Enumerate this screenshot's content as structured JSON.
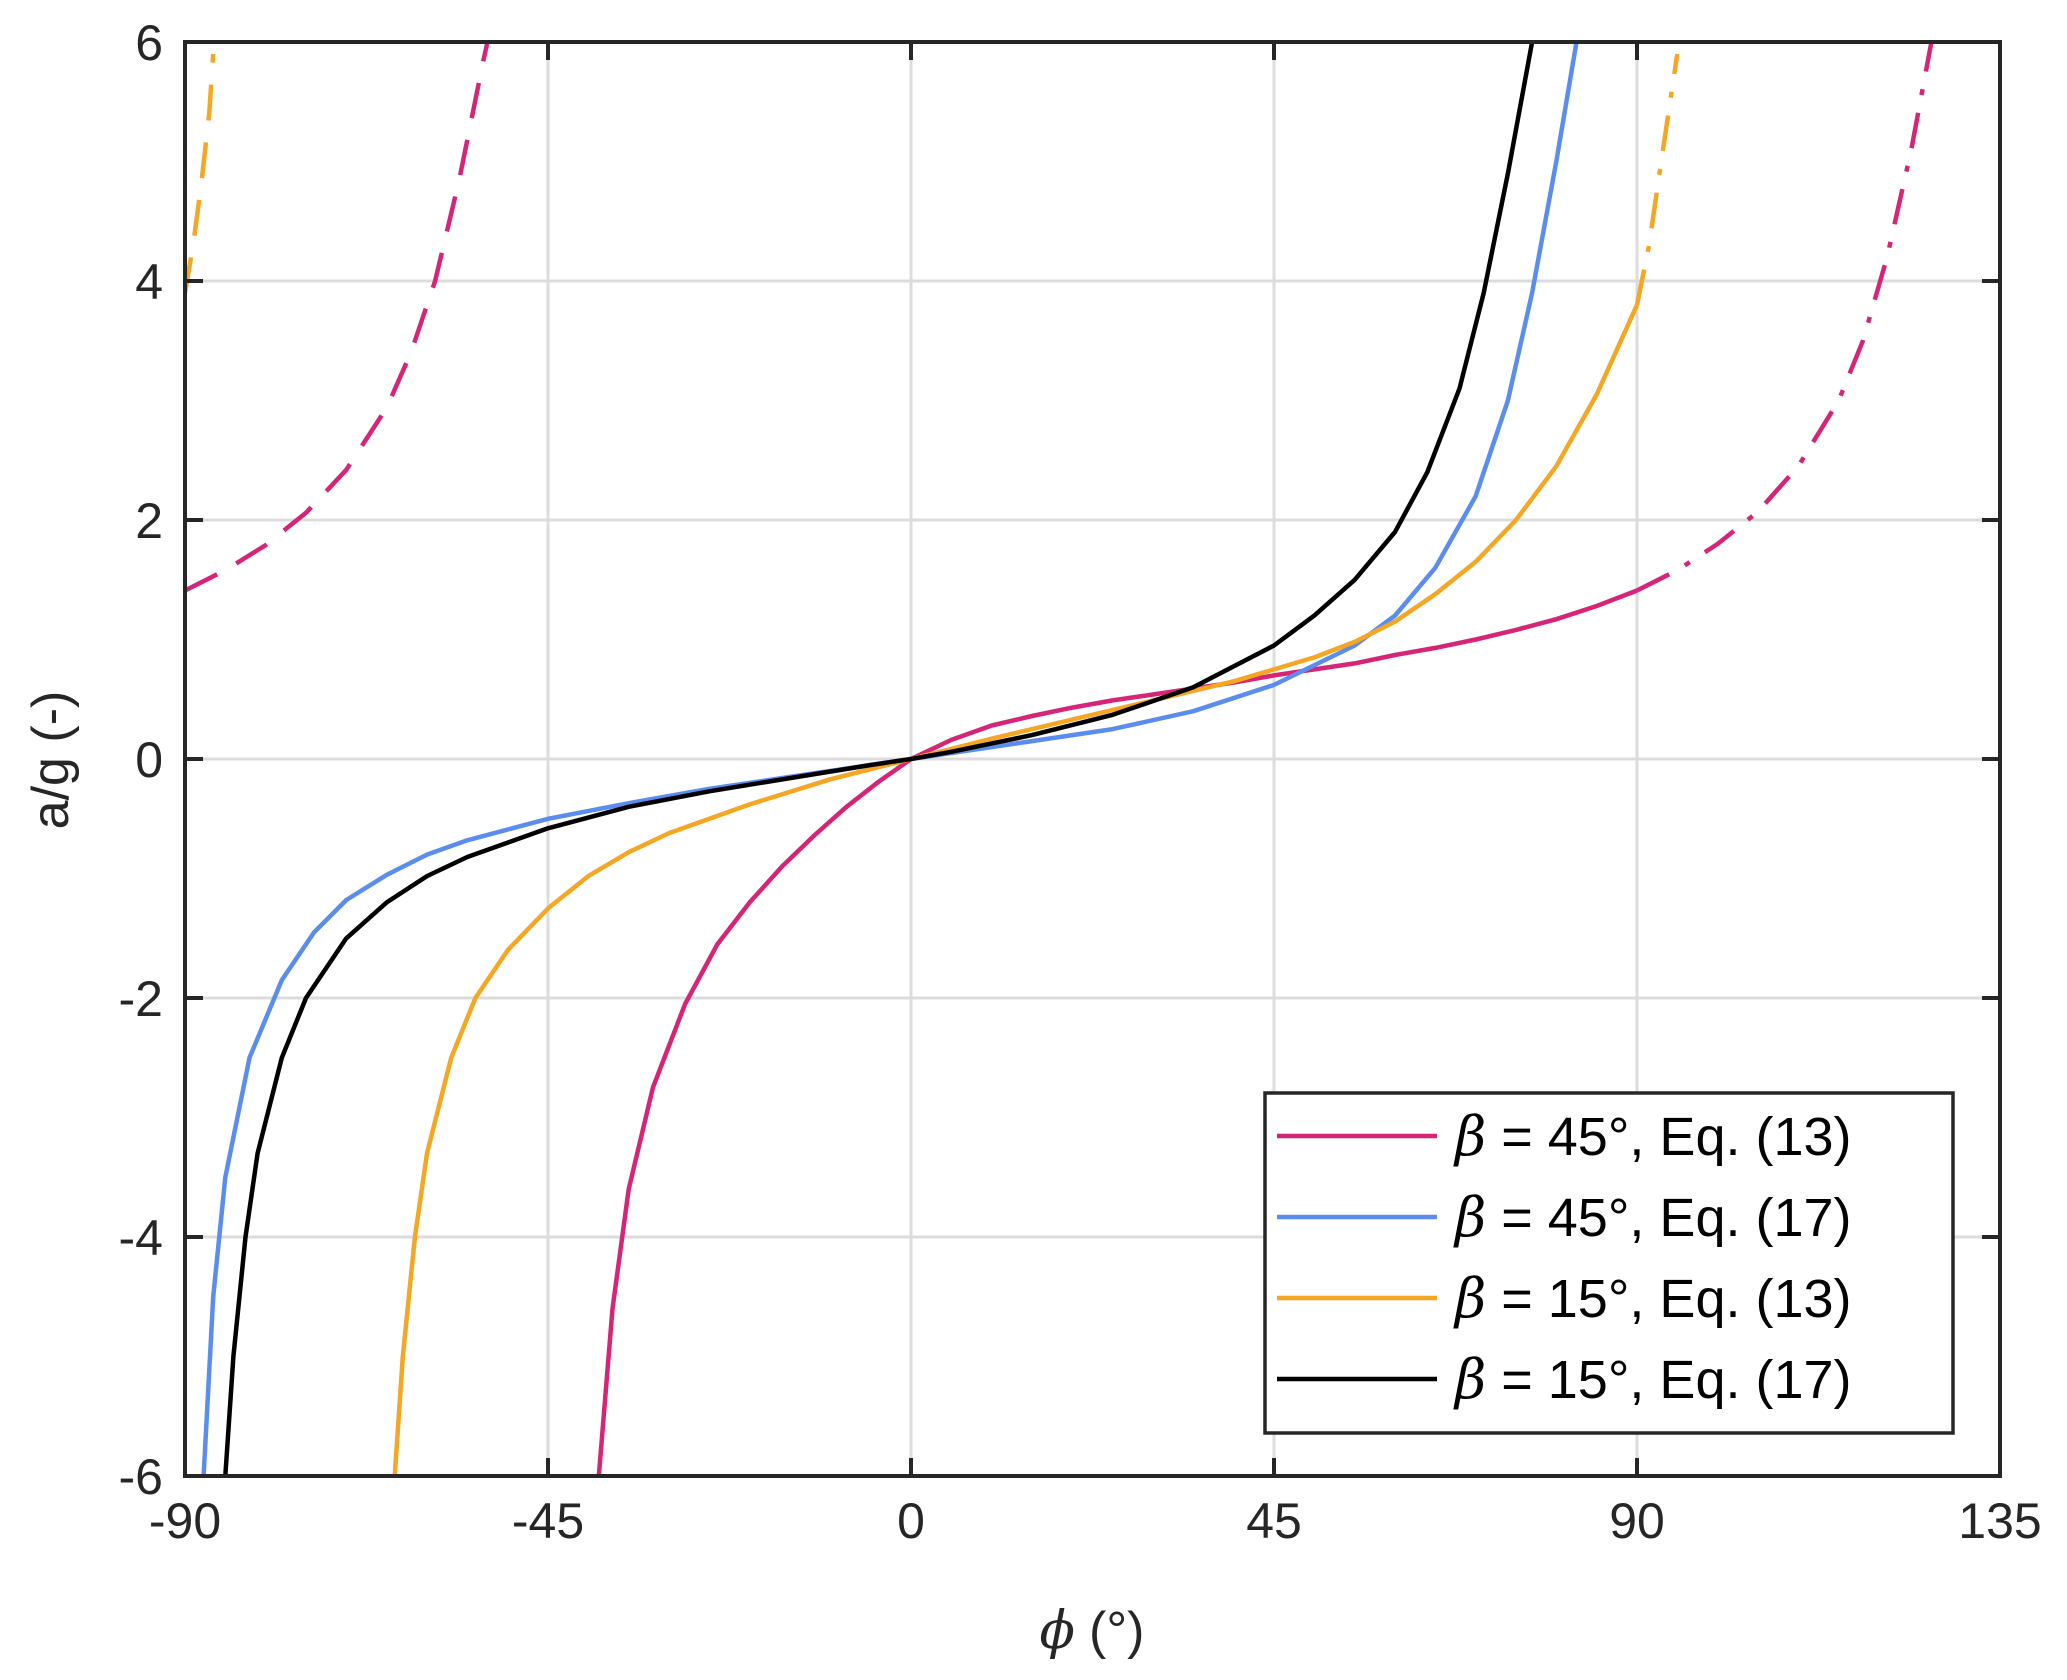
{
  "chart_data": {
    "type": "line",
    "xlabel_symbol": "ϕ",
    "xlabel_unit": "(°)",
    "ylabel": "a/g (-)",
    "xlim": [
      -90,
      135
    ],
    "ylim": [
      -6,
      6
    ],
    "xticks": [
      -90,
      -45,
      0,
      45,
      90,
      135
    ],
    "yticks": [
      -6,
      -4,
      -2,
      0,
      2,
      4,
      6
    ],
    "x_tick_labels": [
      "-90",
      "-45",
      "0",
      "45",
      "90",
      "135"
    ],
    "y_tick_labels": [
      "-6",
      "-4",
      "-2",
      "0",
      "2",
      "4",
      "6"
    ],
    "grid": true,
    "legend_position": "bottom-right",
    "series": [
      {
        "name": "β = 45°, Eq. (13)",
        "legend_symbol": "β",
        "legend_rest": " = 45°, Eq. (13)",
        "color": "#D62577",
        "solid": [
          [
            -38.7,
            -6
          ],
          [
            -37,
            -4.6
          ],
          [
            -35,
            -3.6
          ],
          [
            -32,
            -2.75
          ],
          [
            -28,
            -2.05
          ],
          [
            -24,
            -1.55
          ],
          [
            -20,
            -1.2
          ],
          [
            -16,
            -0.9
          ],
          [
            -12,
            -0.64
          ],
          [
            -8,
            -0.4
          ],
          [
            -4,
            -0.19
          ],
          [
            0,
            0
          ],
          [
            5,
            0.16
          ],
          [
            10,
            0.28
          ],
          [
            15,
            0.36
          ],
          [
            20,
            0.43
          ],
          [
            25,
            0.49
          ],
          [
            30,
            0.54
          ],
          [
            35,
            0.59
          ],
          [
            40,
            0.64
          ],
          [
            45,
            0.7
          ],
          [
            50,
            0.75
          ],
          [
            55,
            0.8
          ],
          [
            60,
            0.87
          ],
          [
            65,
            0.93
          ],
          [
            70,
            1.0
          ],
          [
            75,
            1.08
          ],
          [
            80,
            1.17
          ],
          [
            85,
            1.28
          ],
          [
            90,
            1.41
          ]
        ],
        "dashed": [
          [
            -90,
            1.41
          ],
          [
            -85,
            1.58
          ],
          [
            -80,
            1.79
          ],
          [
            -75,
            2.06
          ],
          [
            -70,
            2.42
          ],
          [
            -65,
            2.94
          ],
          [
            -62,
            3.4
          ],
          [
            -59,
            4.0
          ],
          [
            -56,
            4.85
          ],
          [
            -53,
            5.85
          ],
          [
            -52.5,
            6
          ]
        ],
        "dashdot": [
          [
            90,
            1.41
          ],
          [
            95,
            1.58
          ],
          [
            100,
            1.8
          ],
          [
            105,
            2.07
          ],
          [
            110,
            2.45
          ],
          [
            115,
            3.0
          ],
          [
            118,
            3.5
          ],
          [
            121,
            4.2
          ],
          [
            124,
            5.1
          ],
          [
            126.5,
            6
          ]
        ]
      },
      {
        "name": "β = 45°, Eq. (17)",
        "legend_symbol": "β",
        "legend_rest": " = 45°, Eq. (17)",
        "color": "#5B8DEF",
        "solid": [
          [
            -87.7,
            -6
          ],
          [
            -86.5,
            -4.5
          ],
          [
            -85,
            -3.5
          ],
          [
            -82,
            -2.5
          ],
          [
            -78,
            -1.85
          ],
          [
            -74,
            -1.45
          ],
          [
            -70,
            -1.18
          ],
          [
            -65,
            -0.97
          ],
          [
            -60,
            -0.8
          ],
          [
            -55,
            -0.68
          ],
          [
            -45,
            -0.5
          ],
          [
            -35,
            -0.37
          ],
          [
            -25,
            -0.25
          ],
          [
            -15,
            -0.15
          ],
          [
            -5,
            -0.05
          ],
          [
            0,
            0
          ],
          [
            5,
            0.05
          ],
          [
            15,
            0.15
          ],
          [
            25,
            0.25
          ],
          [
            35,
            0.4
          ],
          [
            45,
            0.62
          ],
          [
            55,
            0.95
          ],
          [
            60,
            1.2
          ],
          [
            65,
            1.6
          ],
          [
            70,
            2.2
          ],
          [
            74,
            3.0
          ],
          [
            77,
            3.9
          ],
          [
            80,
            5.0
          ],
          [
            82.5,
            6
          ]
        ]
      },
      {
        "name": "β = 15°, Eq. (13)",
        "legend_symbol": "β",
        "legend_rest": " = 15°, Eq. (13)",
        "color": "#F5A623",
        "solid": [
          [
            -64,
            -6
          ],
          [
            -63,
            -5.0
          ],
          [
            -61.5,
            -4.0
          ],
          [
            -60,
            -3.3
          ],
          [
            -57,
            -2.5
          ],
          [
            -54,
            -2.0
          ],
          [
            -50,
            -1.6
          ],
          [
            -45,
            -1.25
          ],
          [
            -40,
            -0.98
          ],
          [
            -35,
            -0.78
          ],
          [
            -30,
            -0.62
          ],
          [
            -20,
            -0.38
          ],
          [
            -10,
            -0.17
          ],
          [
            0,
            0
          ],
          [
            10,
            0.17
          ],
          [
            20,
            0.33
          ],
          [
            30,
            0.49
          ],
          [
            40,
            0.65
          ],
          [
            50,
            0.85
          ],
          [
            55,
            0.98
          ],
          [
            60,
            1.15
          ],
          [
            65,
            1.38
          ],
          [
            70,
            1.65
          ],
          [
            75,
            2.0
          ],
          [
            80,
            2.45
          ],
          [
            85,
            3.05
          ],
          [
            90,
            3.8
          ]
        ],
        "dashed": [
          [
            -90,
            3.9
          ],
          [
            -89,
            4.3
          ],
          [
            -88,
            4.8
          ],
          [
            -87,
            5.4
          ],
          [
            -86.5,
            5.9
          ]
        ],
        "dashdot": [
          [
            90,
            3.8
          ],
          [
            91.5,
            4.3
          ],
          [
            93,
            5.0
          ],
          [
            95,
            5.9
          ]
        ]
      },
      {
        "name": "β = 15°, Eq. (17)",
        "legend_symbol": "β",
        "legend_rest": " = 15°, Eq. (17)",
        "color": "#000000",
        "solid": [
          [
            -85,
            -6
          ],
          [
            -84,
            -5.0
          ],
          [
            -82.5,
            -4.0
          ],
          [
            -81,
            -3.3
          ],
          [
            -78,
            -2.5
          ],
          [
            -75,
            -2.0
          ],
          [
            -70,
            -1.5
          ],
          [
            -65,
            -1.2
          ],
          [
            -60,
            -0.98
          ],
          [
            -55,
            -0.82
          ],
          [
            -50,
            -0.7
          ],
          [
            -45,
            -0.58
          ],
          [
            -35,
            -0.4
          ],
          [
            -25,
            -0.27
          ],
          [
            -15,
            -0.16
          ],
          [
            -5,
            -0.05
          ],
          [
            0,
            0
          ],
          [
            5,
            0.06
          ],
          [
            15,
            0.2
          ],
          [
            25,
            0.37
          ],
          [
            35,
            0.6
          ],
          [
            45,
            0.95
          ],
          [
            50,
            1.2
          ],
          [
            55,
            1.5
          ],
          [
            60,
            1.9
          ],
          [
            64,
            2.4
          ],
          [
            68,
            3.1
          ],
          [
            71,
            3.9
          ],
          [
            74,
            4.9
          ],
          [
            77,
            6
          ]
        ]
      }
    ]
  }
}
